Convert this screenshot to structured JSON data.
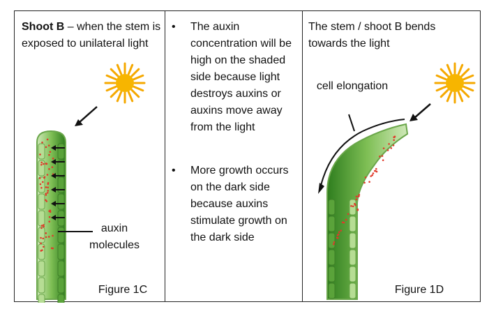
{
  "col1": {
    "heading_bold": "Shoot B",
    "heading_rest": " – when the stem is exposed to unilateral light",
    "label_auxin": "auxin molecules",
    "figure": "Figure 1C"
  },
  "col2": {
    "bullets": [
      "The auxin concentration will be high on the shaded side because light destroys auxins or auxins move away from the light",
      "More growth occurs on the dark side because auxins stimulate growth on the dark side"
    ]
  },
  "col3": {
    "heading": "The stem / shoot B bends towards the light",
    "label_cell": "cell elongation",
    "figure": "Figure 1D"
  },
  "colors": {
    "sun": "#f5a800",
    "stem_dark": "#2e7d1e",
    "stem_light": "#9ad06a",
    "auxin": "#e03a2a"
  }
}
